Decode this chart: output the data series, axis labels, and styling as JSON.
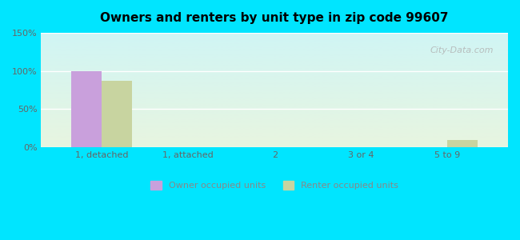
{
  "title": "Owners and renters by unit type in zip code 99607",
  "categories": [
    "1, detached",
    "1, attached",
    "2",
    "3 or 4",
    "5 to 9"
  ],
  "owner_values": [
    100,
    0,
    0,
    0,
    0
  ],
  "renter_values": [
    87,
    0,
    0,
    0,
    10
  ],
  "owner_color": "#c9a0dc",
  "renter_color": "#c8d4a0",
  "plot_bg_top": "#d0f5f5",
  "plot_bg_bottom": "#e8f5e0",
  "outer_bg": "#00e5ff",
  "ylim": [
    0,
    150
  ],
  "yticks": [
    0,
    50,
    100,
    150
  ],
  "ytick_labels": [
    "0%",
    "50%",
    "100%",
    "150%"
  ],
  "watermark": "City-Data.com",
  "legend_owner": "Owner occupied units",
  "legend_renter": "Renter occupied units",
  "bar_width": 0.35
}
